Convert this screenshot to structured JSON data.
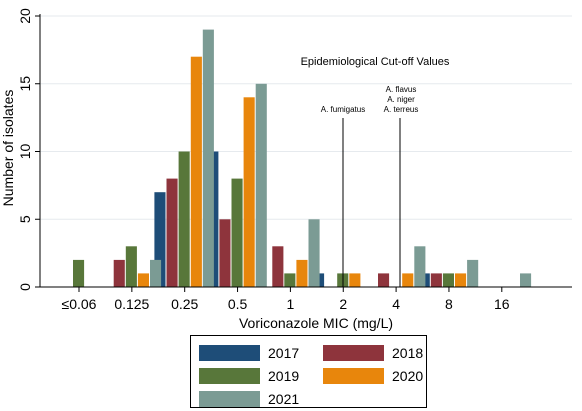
{
  "chart_data": {
    "type": "bar",
    "title": "",
    "xlabel": "Voriconazole MIC (mg/L)",
    "ylabel": "Number of isolates",
    "ylim": [
      0,
      20
    ],
    "yticks": [
      "0",
      "5",
      "10",
      "15",
      "20"
    ],
    "grid": true,
    "categories": [
      "≤0.06",
      "0.125",
      "0.25",
      "0.5",
      "1",
      "2",
      "4",
      "8",
      "16"
    ],
    "series": [
      {
        "name": "2017",
        "color": "#1e4d78",
        "values": [
          0,
          0,
          7,
          10,
          0,
          1,
          0,
          1,
          0
        ]
      },
      {
        "name": "2018",
        "color": "#8e343c",
        "values": [
          0,
          2,
          8,
          5,
          3,
          0,
          1,
          1,
          0
        ]
      },
      {
        "name": "2019",
        "color": "#58773a",
        "values": [
          2,
          3,
          10,
          8,
          1,
          1,
          0,
          1,
          0
        ]
      },
      {
        "name": "2020",
        "color": "#e8860c",
        "values": [
          0,
          1,
          17,
          14,
          2,
          1,
          1,
          1,
          0
        ]
      },
      {
        "name": "2021",
        "color": "#7b9b94",
        "values": [
          0,
          2,
          19,
          15,
          5,
          0,
          3,
          2,
          1
        ]
      }
    ],
    "annotations": {
      "heading": "Epidemiological Cut-off Values",
      "ecv_fumigatus_labels": [
        "A. fumigatus"
      ],
      "ecv_others_labels": [
        "A. flavus",
        "A. niger",
        "A. terreus"
      ]
    },
    "legend": {
      "placement": "bottom",
      "columns": 2
    }
  }
}
